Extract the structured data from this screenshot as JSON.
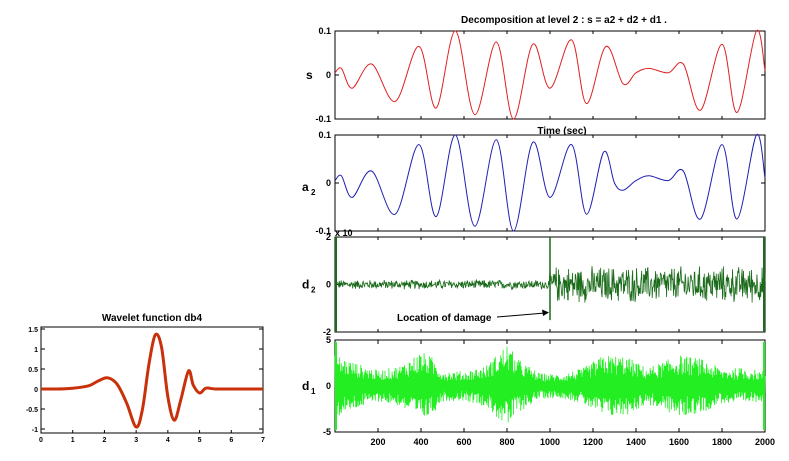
{
  "chart_data": [
    {
      "type": "line",
      "title": "Wavelet function db4",
      "xlim": [
        0,
        7
      ],
      "ylim": [
        -1.1,
        1.55
      ],
      "x_ticks": [
        "0",
        "1",
        "2",
        "3",
        "4",
        "5",
        "6",
        "7"
      ],
      "y_ticks": [
        "1.5",
        "1",
        "0.5",
        "0",
        "-0.5",
        "-1"
      ],
      "series": [
        {
          "color": "#c8310a",
          "points": [
            [
              0,
              0
            ],
            [
              0.5,
              0.0
            ],
            [
              1,
              0.02
            ],
            [
              1.5,
              0.08
            ],
            [
              1.8,
              0.2
            ],
            [
              2.1,
              0.28
            ],
            [
              2.4,
              0.12
            ],
            [
              2.7,
              -0.35
            ],
            [
              3.0,
              -0.95
            ],
            [
              3.2,
              -0.5
            ],
            [
              3.4,
              0.6
            ],
            [
              3.6,
              1.35
            ],
            [
              3.8,
              1.05
            ],
            [
              4.0,
              -0.2
            ],
            [
              4.2,
              -0.78
            ],
            [
              4.4,
              -0.3
            ],
            [
              4.65,
              0.45
            ],
            [
              4.8,
              0.1
            ],
            [
              5.0,
              -0.1
            ],
            [
              5.2,
              0.02
            ],
            [
              5.5,
              0.0
            ],
            [
              6,
              0
            ],
            [
              7,
              0
            ]
          ]
        }
      ]
    },
    {
      "type": "line",
      "title": "Decomposition at level 2 : s = a2 + d2 + d1 .",
      "ylabel": "s",
      "xlabel": "Time (sec)",
      "xlim": [
        0,
        2000
      ],
      "ylim": [
        -0.1,
        0.1
      ],
      "y_ticks": [
        "0.1",
        "0",
        "-0.1"
      ],
      "series": [
        {
          "color": "#e02020",
          "points": [
            [
              0,
              0.005
            ],
            [
              30,
              0.015
            ],
            [
              80,
              -0.03
            ],
            [
              170,
              0.025
            ],
            [
              280,
              -0.06
            ],
            [
              390,
              0.065
            ],
            [
              470,
              -0.075
            ],
            [
              560,
              0.1
            ],
            [
              650,
              -0.09
            ],
            [
              750,
              0.075
            ],
            [
              830,
              -0.1
            ],
            [
              920,
              0.07
            ],
            [
              1000,
              -0.03
            ],
            [
              1100,
              0.08
            ],
            [
              1170,
              -0.065
            ],
            [
              1260,
              0.065
            ],
            [
              1340,
              -0.02
            ],
            [
              1400,
              0.005
            ],
            [
              1460,
              0.015
            ],
            [
              1550,
              0.005
            ],
            [
              1620,
              0.025
            ],
            [
              1700,
              -0.08
            ],
            [
              1800,
              0.07
            ],
            [
              1870,
              -0.085
            ],
            [
              1960,
              0.1
            ],
            [
              2000,
              0.01
            ]
          ]
        }
      ]
    },
    {
      "type": "line",
      "ylabel": "a",
      "ylabel_sub": "2",
      "xlim": [
        0,
        2000
      ],
      "ylim": [
        -0.1,
        0.1
      ],
      "y_ticks": [
        "0.1",
        "0",
        "-0.1"
      ],
      "series": [
        {
          "color": "#1f1fb0",
          "points": [
            [
              0,
              0.005
            ],
            [
              30,
              0.015
            ],
            [
              80,
              -0.03
            ],
            [
              170,
              0.025
            ],
            [
              280,
              -0.065
            ],
            [
              390,
              0.08
            ],
            [
              470,
              -0.07
            ],
            [
              560,
              0.1
            ],
            [
              650,
              -0.09
            ],
            [
              750,
              0.09
            ],
            [
              830,
              -0.1
            ],
            [
              920,
              0.085
            ],
            [
              1000,
              -0.03
            ],
            [
              1100,
              0.08
            ],
            [
              1170,
              -0.065
            ],
            [
              1250,
              0.065
            ],
            [
              1300,
              0.0
            ],
            [
              1340,
              -0.015
            ],
            [
              1400,
              0.005
            ],
            [
              1460,
              0.015
            ],
            [
              1550,
              0.005
            ],
            [
              1620,
              0.025
            ],
            [
              1700,
              -0.075
            ],
            [
              1800,
              0.08
            ],
            [
              1870,
              -0.075
            ],
            [
              1960,
              0.1
            ],
            [
              2000,
              0.01
            ]
          ]
        }
      ]
    },
    {
      "type": "line",
      "ylabel": "d",
      "ylabel_sub": "2",
      "scale_label": "x 10",
      "xlim": [
        0,
        2000
      ],
      "ylim": [
        -2,
        2
      ],
      "y_ticks": [
        "2",
        "0",
        "-2"
      ],
      "annotation": "Location of damage",
      "annotation_x": 1000,
      "series": [
        {
          "color": "#1a6b1a",
          "amplitude_segments": [
            [
              0,
              1000,
              0.22
            ],
            [
              1000,
              2000,
              0.85
            ]
          ]
        }
      ]
    },
    {
      "type": "line",
      "ylabel": "d",
      "ylabel_sub": "1",
      "xlim": [
        0,
        2000
      ],
      "ylim": [
        -5,
        5
      ],
      "y_ticks": [
        "5",
        "0",
        "-5"
      ],
      "x_ticks": [
        "200",
        "400",
        "600",
        "800",
        "1000",
        "1200",
        "1400",
        "1600",
        "1800",
        "2000"
      ],
      "series": [
        {
          "color": "#22ee22",
          "envelope": [
            [
              0,
              3.5
            ],
            [
              100,
              2.5
            ],
            [
              200,
              1.7
            ],
            [
              300,
              2.2
            ],
            [
              400,
              3.8
            ],
            [
              450,
              3.2
            ],
            [
              500,
              1.7
            ],
            [
              600,
              1.6
            ],
            [
              700,
              2.2
            ],
            [
              800,
              4.6
            ],
            [
              850,
              3.0
            ],
            [
              950,
              1.4
            ],
            [
              1050,
              1.3
            ],
            [
              1150,
              1.9
            ],
            [
              1250,
              3.4
            ],
            [
              1350,
              3.3
            ],
            [
              1450,
              2.0
            ],
            [
              1500,
              2.4
            ],
            [
              1600,
              3.4
            ],
            [
              1700,
              3.0
            ],
            [
              1800,
              1.9
            ],
            [
              1900,
              2.0
            ],
            [
              2000,
              1.6
            ]
          ]
        }
      ]
    }
  ]
}
